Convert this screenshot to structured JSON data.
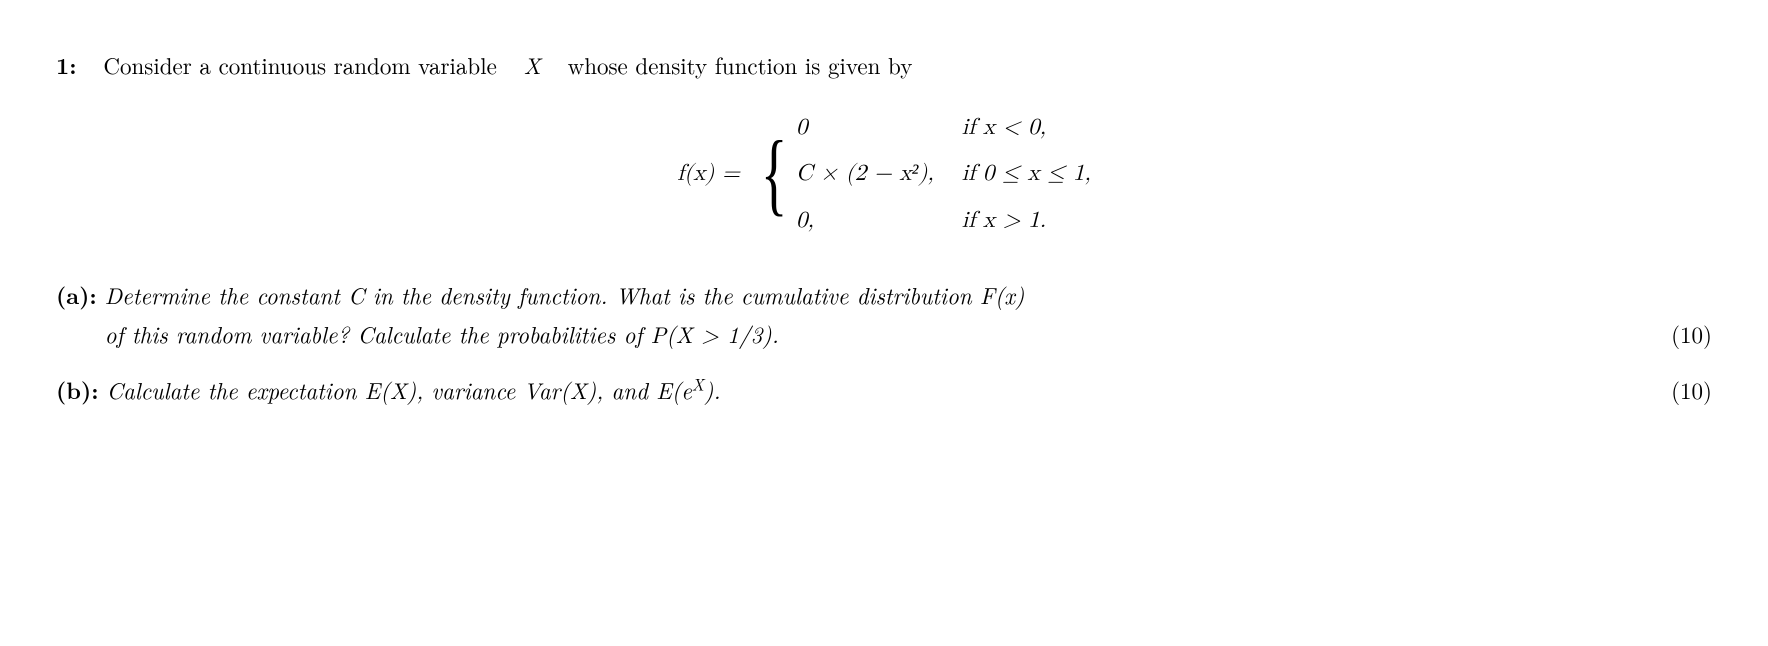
{
  "problem": {
    "number": "1:",
    "intro": "Consider a continuous random variable",
    "variable": "X",
    "intro_tail": "whose density function is given by",
    "equation": {
      "lhs": "f(x) =",
      "cases": [
        {
          "value": "0",
          "condition": "if  x < 0,"
        },
        {
          "value": "C × (2 − x²),",
          "condition": "if  0 ≤ x ≤ 1,"
        },
        {
          "value": "0,",
          "condition": "if  x > 1."
        }
      ]
    },
    "parts": {
      "a": {
        "label": "(a):",
        "line1": "Determine the constant C in the density function.  What is the cumulative distribution F(x)",
        "line2": "of this random variable?  Calculate the probabilities of P(X > 1/3).",
        "points": "(10)"
      },
      "b": {
        "label": "(b):",
        "text_prefix": "Calculate the expectation E(X), variance Var(X), and E(e",
        "exp": "X",
        "text_suffix": ").",
        "points": "(10)"
      }
    }
  }
}
